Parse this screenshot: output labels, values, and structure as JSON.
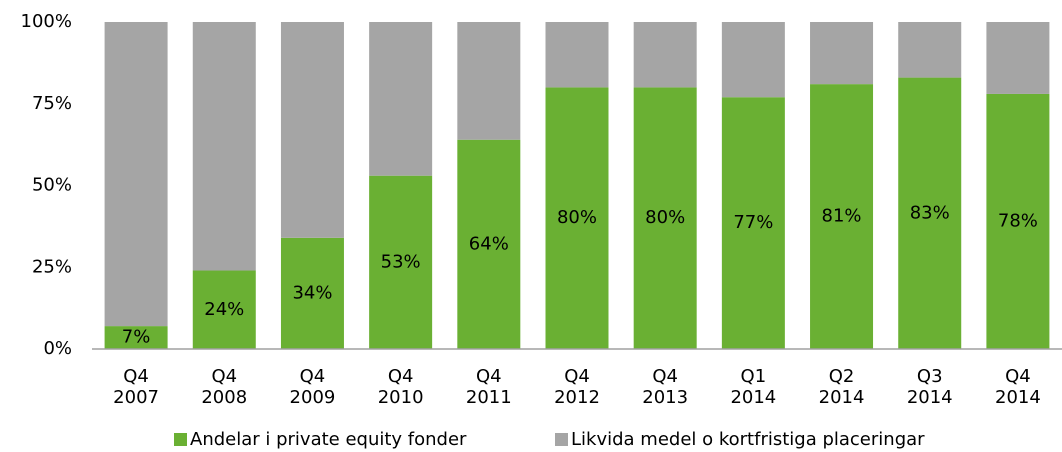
{
  "chart_data": {
    "type": "stacked_bar",
    "categories": [
      [
        "Q4",
        "2007"
      ],
      [
        "Q4",
        "2008"
      ],
      [
        "Q4",
        "2009"
      ],
      [
        "Q4",
        "2010"
      ],
      [
        "Q4",
        "2011"
      ],
      [
        "Q4",
        "2012"
      ],
      [
        "Q4",
        "2013"
      ],
      [
        "Q1",
        "2014"
      ],
      [
        "Q2",
        "2014"
      ],
      [
        "Q3",
        "2014"
      ],
      [
        "Q4",
        "2014"
      ]
    ],
    "series": [
      {
        "name": "Andelar i private equity fonder",
        "color": "#6ab033",
        "values": [
          7,
          24,
          34,
          53,
          64,
          80,
          80,
          77,
          81,
          83,
          78
        ],
        "value_labels": [
          "7%",
          "24%",
          "34%",
          "53%",
          "64%",
          "80%",
          "80%",
          "77%",
          "81%",
          "83%",
          "78%"
        ]
      },
      {
        "name": "Likvida medel o kortfristiga placeringar",
        "color": "#a5a5a5",
        "values": [
          93,
          76,
          66,
          47,
          36,
          20,
          20,
          23,
          19,
          17,
          22
        ]
      }
    ],
    "ylim": [
      0,
      100
    ],
    "yticks": [
      {
        "value": 0,
        "label": "0%"
      },
      {
        "value": 25,
        "label": "25%"
      },
      {
        "value": 50,
        "label": "50%"
      },
      {
        "value": 75,
        "label": "75%"
      },
      {
        "value": 100,
        "label": "100%"
      }
    ],
    "legend": "bottom"
  }
}
